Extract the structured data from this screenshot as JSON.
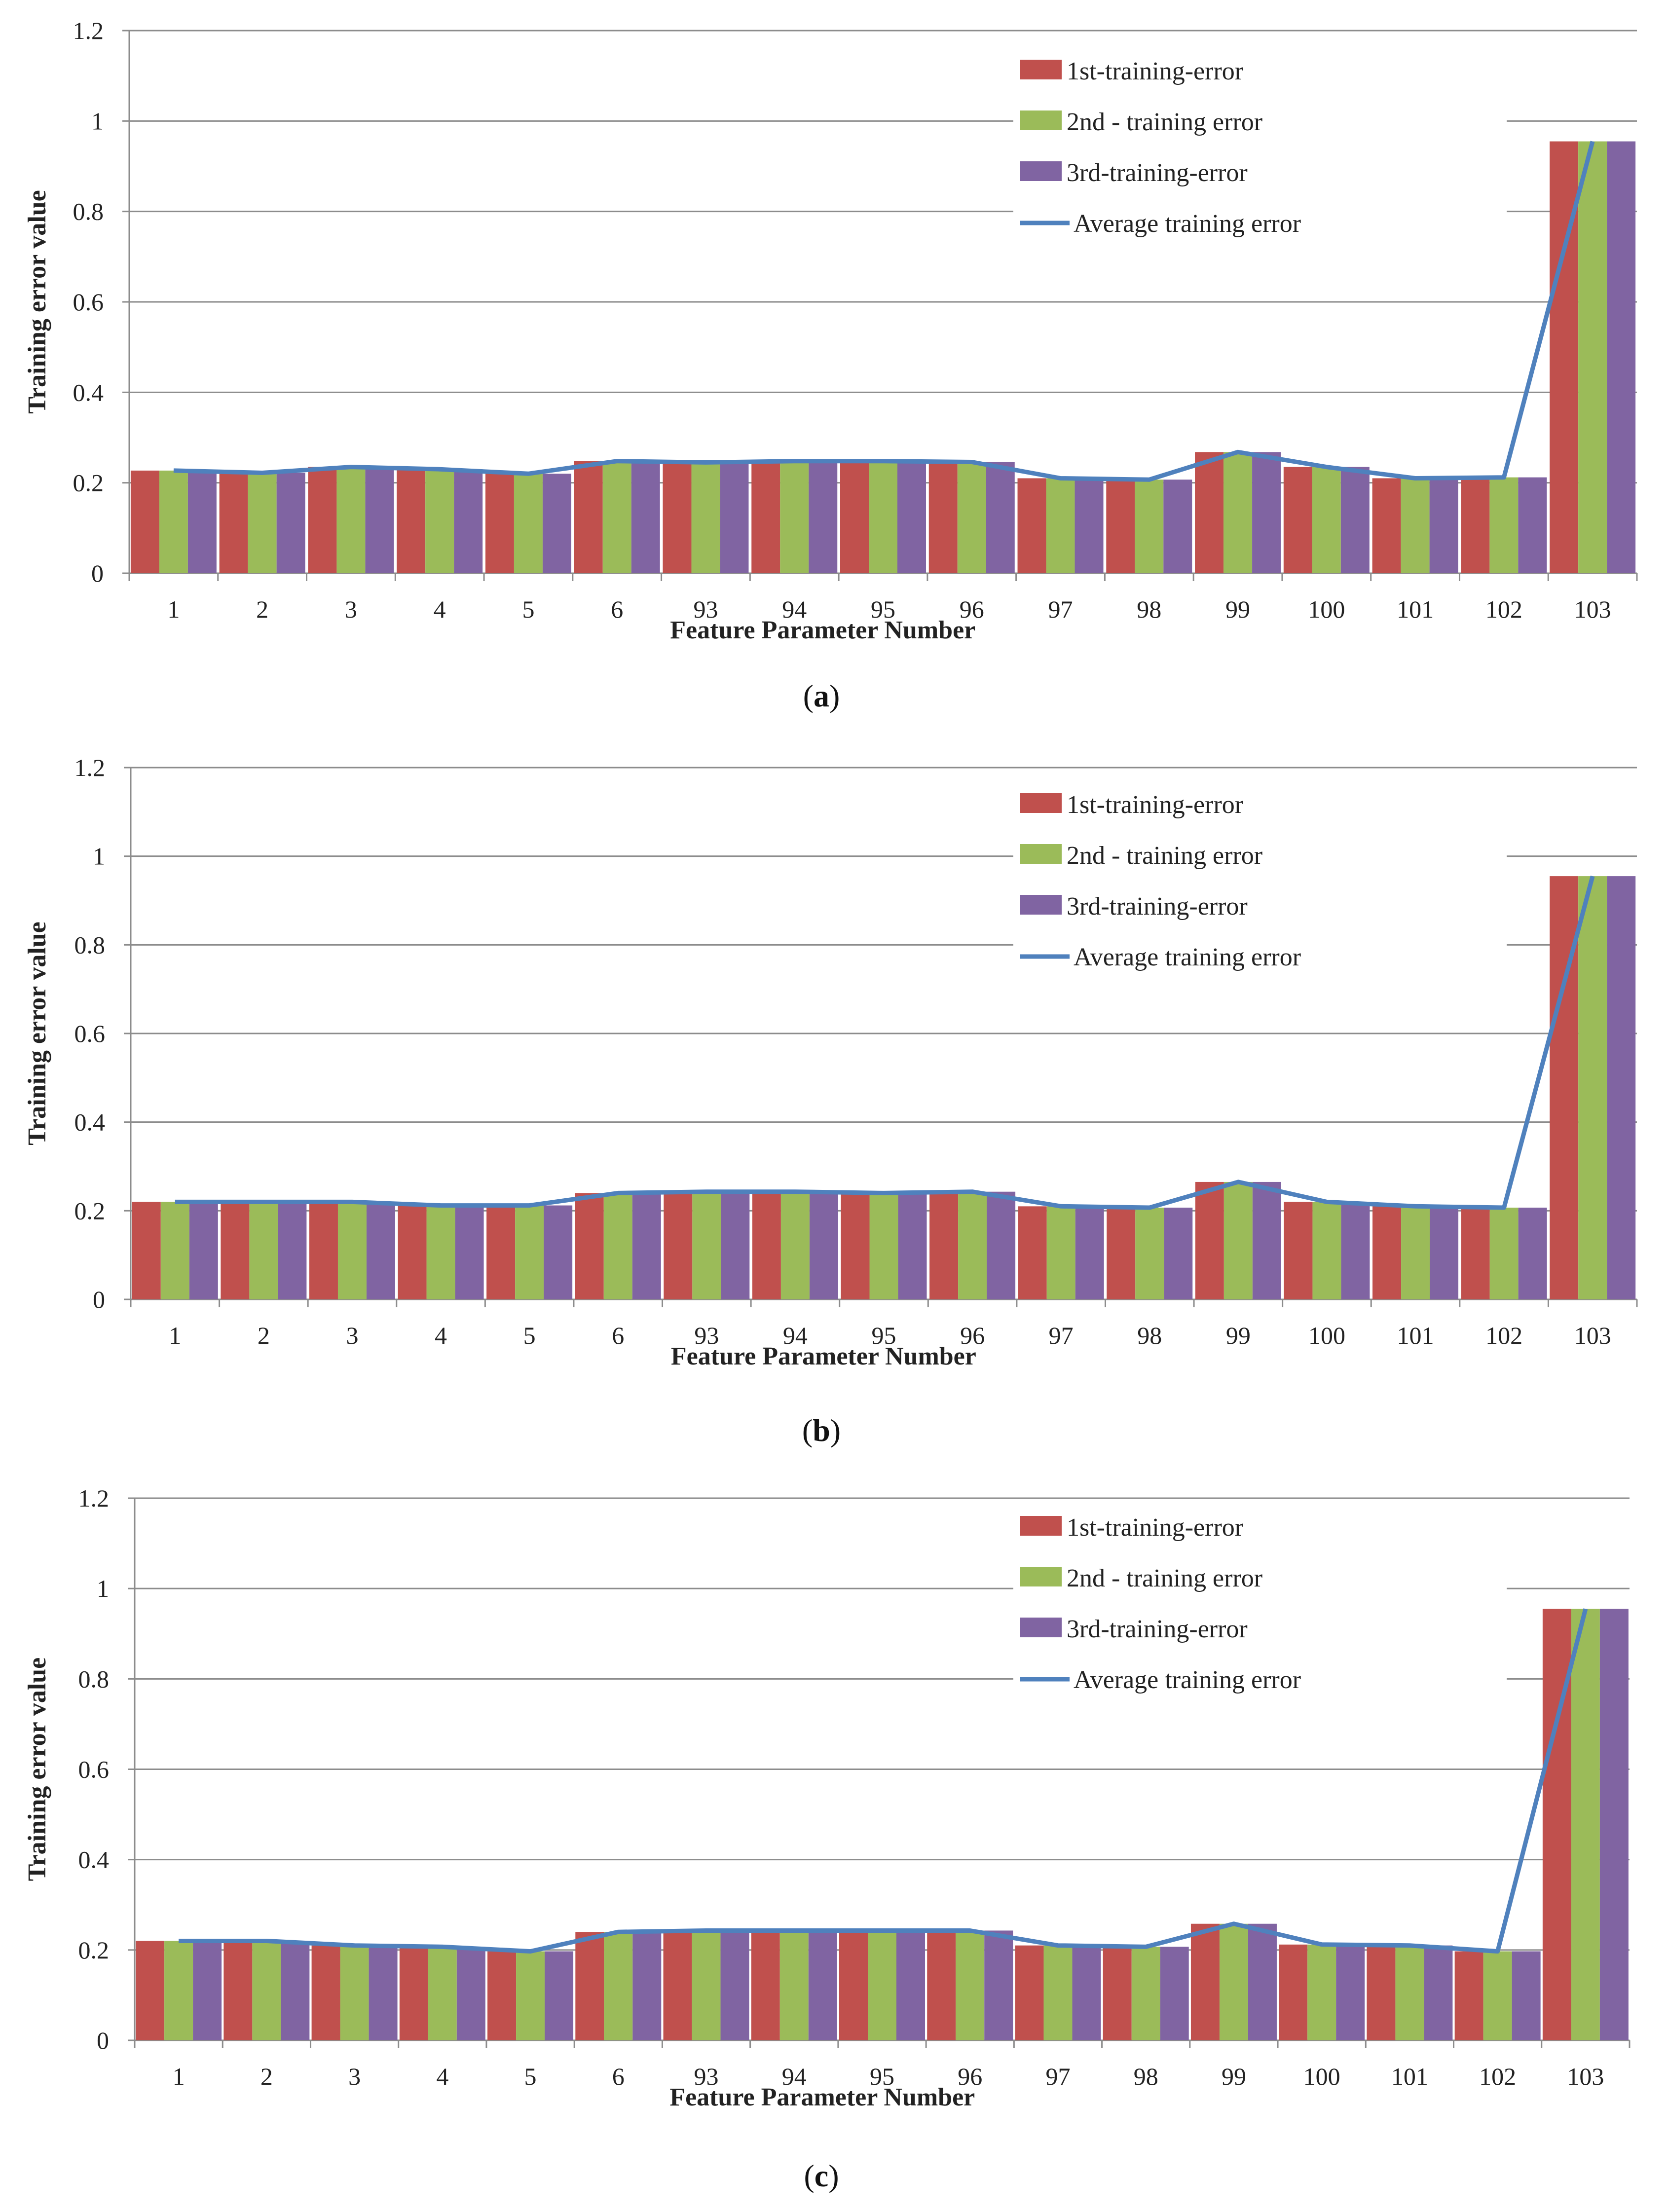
{
  "colors": {
    "s1": "#c0504d",
    "s2": "#9bbb59",
    "s3": "#8064a2",
    "avg": "#4f81bd"
  },
  "chart_data": [
    {
      "type": "bar",
      "caption_letter": "a",
      "xlabel": "Feature Parameter Number",
      "ylabel": "Training error value",
      "ylim": [
        0,
        1.2
      ],
      "yticks": [
        "0",
        "0.2",
        "0.4",
        "0.6",
        "0.8",
        "1",
        "1.2"
      ],
      "categories": [
        "1",
        "2",
        "3",
        "4",
        "5",
        "6",
        "93",
        "94",
        "95",
        "96",
        "97",
        "98",
        "99",
        "100",
        "101",
        "102",
        "103"
      ],
      "series": [
        {
          "name": "1st-training-error",
          "kind": "bar",
          "values": [
            0.227,
            0.222,
            0.235,
            0.23,
            0.22,
            0.248,
            0.245,
            0.248,
            0.248,
            0.246,
            0.21,
            0.207,
            0.268,
            0.235,
            0.21,
            0.212,
            0.955
          ]
        },
        {
          "name": "2nd - training error",
          "kind": "bar",
          "values": [
            0.227,
            0.222,
            0.235,
            0.23,
            0.22,
            0.248,
            0.245,
            0.248,
            0.248,
            0.246,
            0.21,
            0.207,
            0.268,
            0.235,
            0.21,
            0.212,
            0.955
          ]
        },
        {
          "name": "3rd-training-error",
          "kind": "bar",
          "values": [
            0.227,
            0.222,
            0.235,
            0.23,
            0.22,
            0.248,
            0.245,
            0.248,
            0.248,
            0.246,
            0.21,
            0.207,
            0.268,
            0.235,
            0.21,
            0.212,
            0.955
          ]
        },
        {
          "name": "Average training error",
          "kind": "line",
          "values": [
            0.227,
            0.222,
            0.235,
            0.23,
            0.22,
            0.248,
            0.245,
            0.248,
            0.248,
            0.246,
            0.21,
            0.207,
            0.268,
            0.235,
            0.21,
            0.212,
            0.955
          ]
        }
      ],
      "legend": "top-right"
    },
    {
      "type": "bar",
      "caption_letter": "b",
      "xlabel": "Feature Parameter Number",
      "ylabel": "Training error value",
      "ylim": [
        0,
        1.2
      ],
      "yticks": [
        "0",
        "0.2",
        "0.4",
        "0.6",
        "0.8",
        "1",
        "1.2"
      ],
      "categories": [
        "1",
        "2",
        "3",
        "4",
        "5",
        "6",
        "93",
        "94",
        "95",
        "96",
        "97",
        "98",
        "99",
        "100",
        "101",
        "102",
        "103"
      ],
      "series": [
        {
          "name": "1st-training-error",
          "kind": "bar",
          "values": [
            0.22,
            0.22,
            0.22,
            0.212,
            0.212,
            0.24,
            0.243,
            0.243,
            0.24,
            0.243,
            0.21,
            0.207,
            0.265,
            0.22,
            0.21,
            0.207,
            0.955
          ]
        },
        {
          "name": "2nd - training error",
          "kind": "bar",
          "values": [
            0.22,
            0.22,
            0.22,
            0.212,
            0.212,
            0.24,
            0.243,
            0.243,
            0.24,
            0.243,
            0.21,
            0.207,
            0.265,
            0.22,
            0.21,
            0.207,
            0.955
          ]
        },
        {
          "name": "3rd-training-error",
          "kind": "bar",
          "values": [
            0.22,
            0.22,
            0.22,
            0.212,
            0.212,
            0.24,
            0.243,
            0.243,
            0.24,
            0.243,
            0.21,
            0.207,
            0.265,
            0.22,
            0.21,
            0.207,
            0.955
          ]
        },
        {
          "name": "Average training error",
          "kind": "line",
          "values": [
            0.22,
            0.22,
            0.22,
            0.212,
            0.212,
            0.24,
            0.243,
            0.243,
            0.24,
            0.243,
            0.21,
            0.207,
            0.265,
            0.22,
            0.21,
            0.207,
            0.955
          ]
        }
      ],
      "legend": "top-right"
    },
    {
      "type": "bar",
      "caption_letter": "c",
      "xlabel": "Feature Parameter Number",
      "ylabel": "Training error value",
      "ylim": [
        0,
        1.2
      ],
      "yticks": [
        "0",
        "0.2",
        "0.4",
        "0.6",
        "0.8",
        "1",
        "1.2"
      ],
      "categories": [
        "1",
        "2",
        "3",
        "4",
        "5",
        "6",
        "93",
        "94",
        "95",
        "96",
        "97",
        "98",
        "99",
        "100",
        "101",
        "102",
        "103"
      ],
      "series": [
        {
          "name": "1st-training-error",
          "kind": "bar",
          "values": [
            0.22,
            0.22,
            0.21,
            0.207,
            0.197,
            0.24,
            0.243,
            0.243,
            0.243,
            0.243,
            0.21,
            0.207,
            0.258,
            0.212,
            0.21,
            0.197,
            0.955
          ]
        },
        {
          "name": "2nd - training error",
          "kind": "bar",
          "values": [
            0.22,
            0.22,
            0.21,
            0.207,
            0.197,
            0.24,
            0.243,
            0.243,
            0.243,
            0.243,
            0.21,
            0.207,
            0.258,
            0.212,
            0.21,
            0.197,
            0.955
          ]
        },
        {
          "name": "3rd-training-error",
          "kind": "bar",
          "values": [
            0.22,
            0.22,
            0.21,
            0.207,
            0.197,
            0.24,
            0.243,
            0.243,
            0.243,
            0.243,
            0.21,
            0.207,
            0.258,
            0.212,
            0.21,
            0.197,
            0.955
          ]
        },
        {
          "name": "Average training error",
          "kind": "line",
          "values": [
            0.22,
            0.22,
            0.21,
            0.207,
            0.197,
            0.24,
            0.243,
            0.243,
            0.243,
            0.243,
            0.21,
            0.207,
            0.258,
            0.212,
            0.21,
            0.197,
            0.955
          ]
        }
      ],
      "legend": "top-right"
    }
  ]
}
